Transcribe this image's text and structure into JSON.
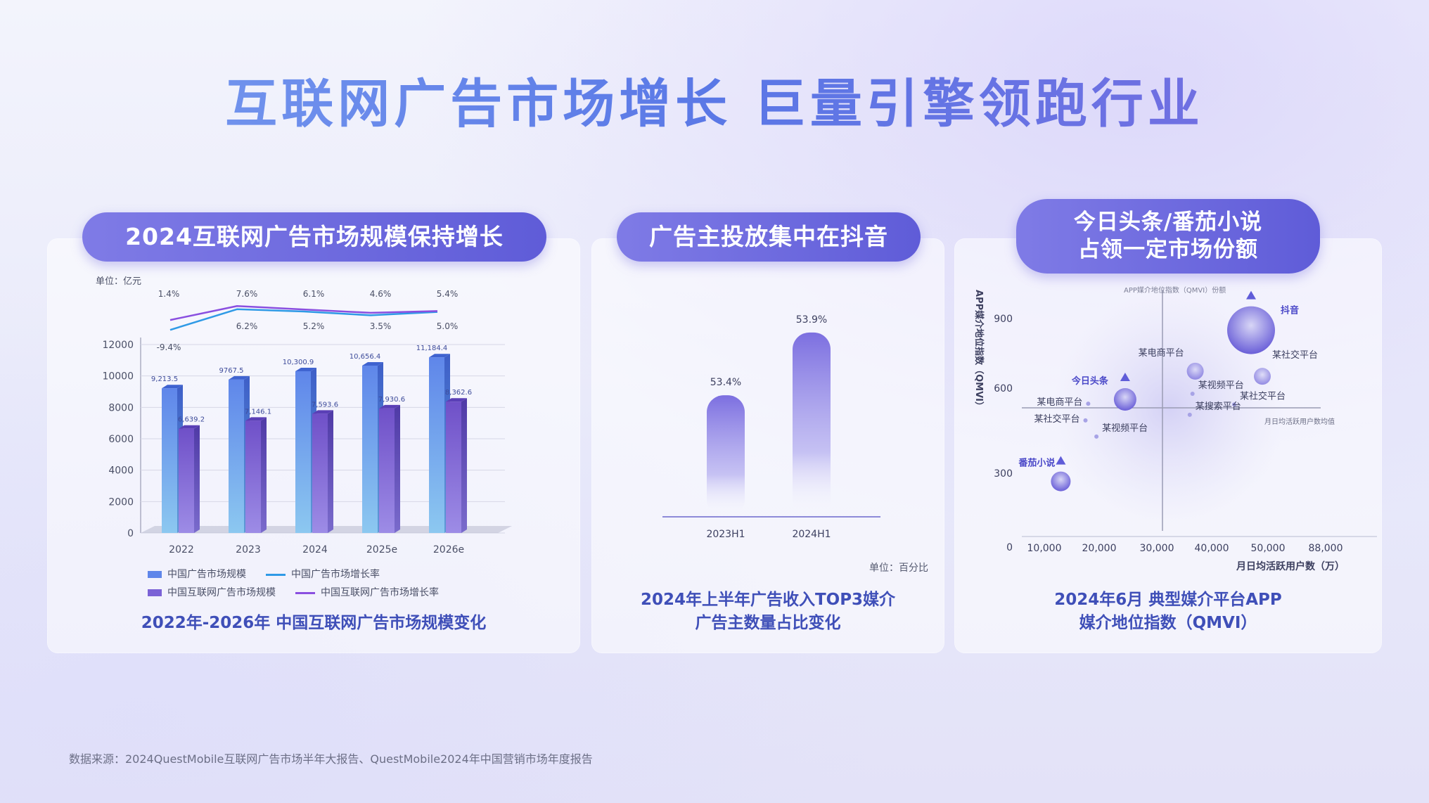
{
  "title": "互联网广告市场增长  巨量引擎领跑行业",
  "source": "数据来源：2024QuestMobile互联网广告市场半年大报告、QuestMobile2024年中国营销市场年度报告",
  "colors": {
    "accent": "#5f5cd8",
    "title_blue": "#5a78e6",
    "bar_blue": "#6f9cf0",
    "bar_purple": "#7b62d6"
  },
  "panel1": {
    "header": "2024互联网广告市场规模保持增长",
    "caption": "2022年-2026年 中国互联网广告市场规模变化",
    "unit": "单位：亿元",
    "legend": [
      "中国广告市场规模",
      "中国广告市场增长率",
      "中国互联网广告市场规模",
      "中国互联网广告市场增长率"
    ]
  },
  "panel2": {
    "header": "广告主投放集中在抖音",
    "caption": "2024年上半年广告收入TOP3媒介\n广告主数量占比变化",
    "unit": "单位：百分比"
  },
  "panel3": {
    "header": "今日头条/番茄小说\n占领一定市场份额",
    "caption": "2024年6月 典型媒介平台APP\n媒介地位指数（QMVI）",
    "ylabel": "APP媒介地位指数（QMVI）",
    "xlabel": "月日均活跃用户数（万）",
    "bubble_note": "APP媒介地位指数（QMVI）份额",
    "avg_line_label": "月日均活跃用户数均值"
  },
  "chart_data": [
    {
      "type": "bar",
      "categories": [
        "2022",
        "2023",
        "2024",
        "2025e",
        "2026e"
      ],
      "ylim": [
        0,
        12000
      ],
      "yticks": [
        0,
        2000,
        4000,
        6000,
        8000,
        10000,
        12000
      ],
      "series": [
        {
          "name": "中国广告市场规模",
          "values": [
            9213.5,
            9767.5,
            10300.9,
            10656.4,
            11184.4
          ],
          "labels": [
            "9,213.5",
            "9767.5",
            "10,300.9",
            "10,656.4",
            "11,184.4"
          ]
        },
        {
          "name": "中国互联网广告市场规模",
          "values": [
            6639.2,
            7146.1,
            7593.6,
            7930.6,
            8362.6
          ],
          "labels": [
            "6,639.2",
            "7,146.1",
            "7,593.6",
            "7,930.6",
            "8,362.6"
          ]
        }
      ],
      "lines": [
        {
          "name": "中国广告市场增长率",
          "values": [
            -9.4,
            6.2,
            5.2,
            3.5,
            5.0
          ],
          "labels": [
            "-9.4%",
            "6.2%",
            "5.2%",
            "3.5%",
            "5.0%"
          ]
        },
        {
          "name": "中国互联网广告市场增长率",
          "values": [
            1.4,
            7.6,
            6.1,
            4.6,
            5.4
          ],
          "labels": [
            "1.4%",
            "7.6%",
            "6.1%",
            "4.6%",
            "5.4%"
          ]
        }
      ]
    },
    {
      "type": "bar",
      "categories": [
        "2023H1",
        "2024H1"
      ],
      "values": [
        53.4,
        53.9
      ],
      "labels": [
        "53.4%",
        "53.9%"
      ]
    },
    {
      "type": "scatter",
      "xticks": [
        "10,000",
        "20,000",
        "30,000",
        "40,000",
        "50,000",
        "88,000"
      ],
      "yticks": [
        "0",
        "300",
        "600",
        "900"
      ],
      "points": [
        {
          "name": "抖音",
          "x": 47000,
          "y": 860,
          "highlight": true
        },
        {
          "name": "今日头条",
          "x": 24500,
          "y": 590,
          "highlight": true
        },
        {
          "name": "番茄小说",
          "x": 13000,
          "y": 270,
          "highlight": true
        },
        {
          "name": "某电商平台",
          "x": 37000,
          "y": 700,
          "highlight": false
        },
        {
          "name": "某社交平台",
          "x": 49000,
          "y": 680,
          "highlight": false
        },
        {
          "name": "某视频平台",
          "x": 36500,
          "y": 612,
          "highlight": false
        },
        {
          "name": "某电商平台",
          "x": 18000,
          "y": 573,
          "highlight": false
        },
        {
          "name": "某社交平台",
          "x": 44000,
          "y": 570,
          "highlight": false
        },
        {
          "name": "某搜索平台",
          "x": 36000,
          "y": 530,
          "highlight": false
        },
        {
          "name": "某社交平台",
          "x": 17500,
          "y": 508,
          "highlight": false
        },
        {
          "name": "某视频平台",
          "x": 19500,
          "y": 445,
          "highlight": false
        }
      ]
    }
  ]
}
